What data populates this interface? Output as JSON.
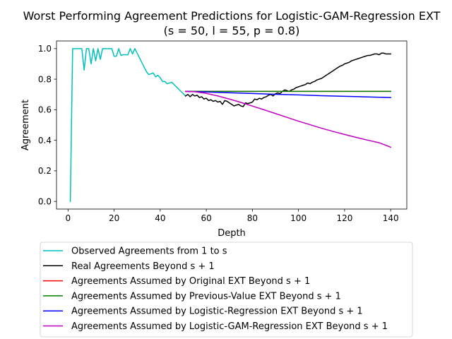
{
  "chart_data": {
    "type": "line",
    "title": "Worst Performing Agreement Predictions for Logistic-GAM-Regression EXT",
    "subtitle": "(s = 50, l = 55, p = 0.8)",
    "xlabel": "Depth",
    "ylabel": "Agreement",
    "xlim": [
      -5,
      147
    ],
    "ylim": [
      -0.05,
      1.05
    ],
    "xticks": [
      0,
      20,
      40,
      60,
      80,
      100,
      120,
      140
    ],
    "yticks": [
      0.0,
      0.2,
      0.4,
      0.6,
      0.8,
      1.0
    ],
    "xtick_labels": [
      "0",
      "20",
      "40",
      "60",
      "80",
      "100",
      "120",
      "140"
    ],
    "ytick_labels": [
      "0.0",
      "0.2",
      "0.4",
      "0.6",
      "0.8",
      "1.0"
    ],
    "grid": false,
    "legend_position": "below",
    "series": [
      {
        "name": "Observed Agreements from 1 to s",
        "color": "#00bfbf",
        "x": [
          1,
          2,
          3,
          4,
          5,
          6,
          7,
          8,
          9,
          10,
          11,
          12,
          13,
          14,
          15,
          16,
          17,
          18,
          19,
          20,
          21,
          22,
          23,
          24,
          25,
          26,
          27,
          28,
          29,
          30,
          31,
          32,
          33,
          34,
          35,
          36,
          37,
          38,
          39,
          40,
          41,
          42,
          43,
          44,
          45,
          46,
          47,
          48,
          49,
          50,
          51
        ],
        "y": [
          0.0,
          1.0,
          1.0,
          1.0,
          1.0,
          1.0,
          0.86,
          1.0,
          1.0,
          0.9,
          1.0,
          0.92,
          1.0,
          0.93,
          1.0,
          1.0,
          1.0,
          1.0,
          1.0,
          0.95,
          0.95,
          1.0,
          0.955,
          0.96,
          0.96,
          0.96,
          1.0,
          0.965,
          1.0,
          0.97,
          0.94,
          0.91,
          0.88,
          0.85,
          0.83,
          0.835,
          0.84,
          0.815,
          0.825,
          0.81,
          0.785,
          0.785,
          0.77,
          0.775,
          0.78,
          0.765,
          0.75,
          0.735,
          0.72,
          0.705,
          0.69
        ]
      },
      {
        "name": "Real Agreements Beyond s + 1",
        "color": "#000000",
        "x": [
          51,
          52,
          53,
          54,
          55,
          56,
          57,
          58,
          59,
          60,
          61,
          62,
          63,
          64,
          65,
          66,
          67,
          68,
          69,
          70,
          71,
          72,
          73,
          74,
          75,
          76,
          77,
          78,
          79,
          80,
          81,
          82,
          83,
          84,
          85,
          86,
          87,
          88,
          89,
          90,
          91,
          92,
          93,
          94,
          95,
          96,
          97,
          98,
          99,
          100,
          101,
          102,
          103,
          104,
          105,
          106,
          107,
          108,
          109,
          110,
          111,
          112,
          113,
          114,
          115,
          116,
          117,
          118,
          119,
          120,
          121,
          122,
          123,
          124,
          125,
          126,
          127,
          128,
          129,
          130,
          131,
          132,
          133,
          134,
          135,
          136,
          137,
          138,
          139,
          140
        ],
        "y": [
          0.69,
          0.7,
          0.685,
          0.7,
          0.69,
          0.695,
          0.68,
          0.685,
          0.67,
          0.675,
          0.66,
          0.665,
          0.655,
          0.66,
          0.65,
          0.655,
          0.635,
          0.66,
          0.655,
          0.645,
          0.635,
          0.625,
          0.63,
          0.635,
          0.625,
          0.62,
          0.645,
          0.64,
          0.645,
          0.65,
          0.67,
          0.665,
          0.675,
          0.67,
          0.68,
          0.685,
          0.695,
          0.7,
          0.69,
          0.705,
          0.71,
          0.705,
          0.72,
          0.73,
          0.725,
          0.72,
          0.73,
          0.735,
          0.745,
          0.75,
          0.755,
          0.76,
          0.765,
          0.775,
          0.77,
          0.78,
          0.785,
          0.795,
          0.8,
          0.805,
          0.815,
          0.825,
          0.835,
          0.845,
          0.855,
          0.865,
          0.875,
          0.885,
          0.89,
          0.9,
          0.905,
          0.91,
          0.92,
          0.925,
          0.93,
          0.935,
          0.94,
          0.945,
          0.95,
          0.955,
          0.955,
          0.96,
          0.965,
          0.965,
          0.96,
          0.97,
          0.97,
          0.965,
          0.965,
          0.965
        ]
      },
      {
        "name": "Agreements Assumed by Original EXT Beyond s + 1",
        "color": "#ff0000",
        "x": [
          51,
          140
        ],
        "y": [
          0.72,
          0.72
        ]
      },
      {
        "name": "Agreements Assumed by Previous-Value EXT Beyond s + 1",
        "color": "#008000",
        "x": [
          51,
          140
        ],
        "y": [
          0.72,
          0.72
        ]
      },
      {
        "name": "Agreements Assumed by Logistic-Regression EXT Beyond s + 1",
        "color": "#0000ff",
        "x": [
          51,
          60,
          70,
          80,
          90,
          100,
          110,
          120,
          130,
          140
        ],
        "y": [
          0.72,
          0.716,
          0.711,
          0.706,
          0.701,
          0.697,
          0.692,
          0.688,
          0.684,
          0.68
        ]
      },
      {
        "name": "Agreements Assumed by Logistic-GAM-Regression EXT Beyond s + 1",
        "color": "#bf00bf",
        "x": [
          51,
          55,
          60,
          65,
          70,
          75,
          80,
          85,
          90,
          95,
          100,
          105,
          110,
          115,
          120,
          125,
          130,
          135,
          140
        ],
        "y": [
          0.72,
          0.718,
          0.707,
          0.69,
          0.67,
          0.648,
          0.624,
          0.6,
          0.575,
          0.55,
          0.525,
          0.502,
          0.479,
          0.458,
          0.438,
          0.419,
          0.401,
          0.384,
          0.355
        ]
      }
    ]
  }
}
